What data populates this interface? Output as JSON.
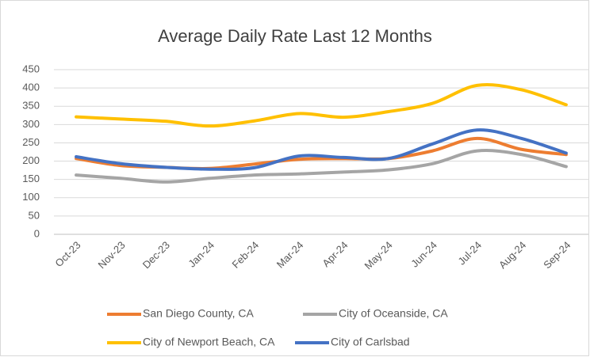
{
  "chart_data": {
    "type": "line",
    "title": "Average Daily Rate Last 12 Months",
    "categories": [
      "Oct-23",
      "Nov-23",
      "Dec-23",
      "Jan-24",
      "Feb-24",
      "Mar-24",
      "Apr-24",
      "May-24",
      "Jun-24",
      "Jul-24",
      "Aug-24",
      "Sep-24"
    ],
    "series": [
      {
        "name": "San Diego County, CA",
        "color": "#ed7d31",
        "values": [
          207,
          188,
          183,
          180,
          192,
          205,
          207,
          207,
          228,
          262,
          232,
          218
        ]
      },
      {
        "name": "City of Oceanside, CA",
        "color": "#a5a5a5",
        "values": [
          162,
          153,
          143,
          153,
          162,
          165,
          170,
          176,
          193,
          228,
          218,
          185
        ]
      },
      {
        "name": "City of Newport Beach, CA",
        "color": "#ffc000",
        "values": [
          321,
          315,
          309,
          296,
          310,
          330,
          320,
          335,
          358,
          407,
          395,
          354
        ]
      },
      {
        "name": "City of Carlsbad",
        "color": "#4472c4",
        "values": [
          212,
          193,
          183,
          178,
          182,
          214,
          210,
          207,
          247,
          285,
          262,
          222
        ]
      }
    ],
    "ylim": [
      0,
      450
    ],
    "yticks": [
      0,
      50,
      100,
      150,
      200,
      250,
      300,
      350,
      400,
      450
    ],
    "grid": true,
    "legend": "bottom"
  }
}
